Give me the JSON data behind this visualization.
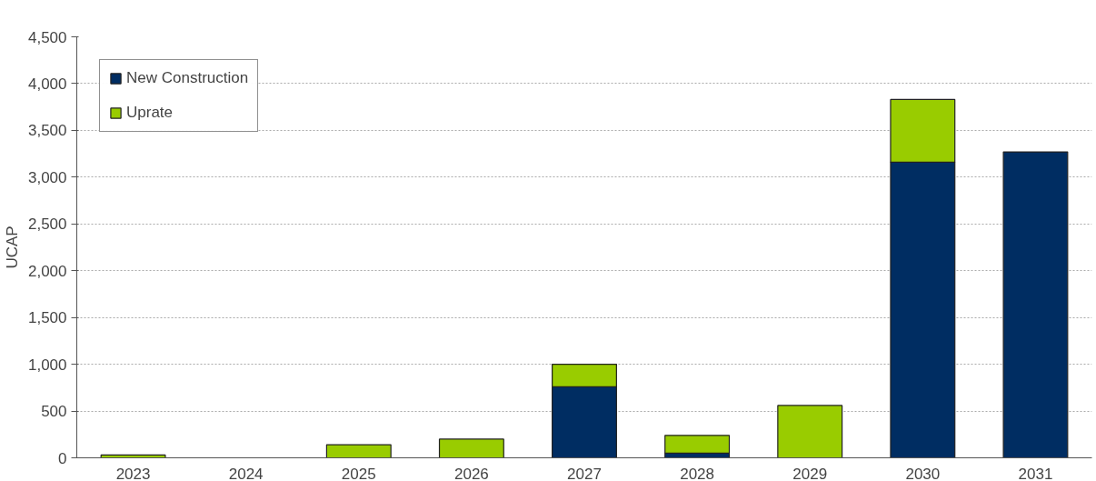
{
  "chart_data": {
    "type": "bar",
    "stacked": true,
    "ylabel": "UCAP",
    "categories": [
      "2023",
      "2024",
      "2025",
      "2026",
      "2027",
      "2028",
      "2029",
      "2030",
      "2031"
    ],
    "series": [
      {
        "name": "New Construction",
        "color": "#002d62",
        "values": [
          null,
          null,
          null,
          null,
          760,
          50,
          null,
          3160,
          3270
        ]
      },
      {
        "name": "Uprate",
        "color": "#99cc00",
        "values": [
          30,
          null,
          140,
          200,
          240,
          190,
          560,
          670,
          null
        ]
      }
    ],
    "ylim": [
      0,
      4500
    ],
    "yticks": [
      {
        "value": 0,
        "label": "0"
      },
      {
        "value": 500,
        "label": "500"
      },
      {
        "value": 1000,
        "label": "1,000"
      },
      {
        "value": 1500,
        "label": "1,500"
      },
      {
        "value": 2000,
        "label": "2,000"
      },
      {
        "value": 2500,
        "label": "2,500"
      },
      {
        "value": 3000,
        "label": "3,000"
      },
      {
        "value": 3500,
        "label": "3,500"
      },
      {
        "value": 4000,
        "label": "4,000"
      },
      {
        "value": 4500,
        "label": "4,500"
      }
    ],
    "grid": "y",
    "legend": "top left"
  }
}
